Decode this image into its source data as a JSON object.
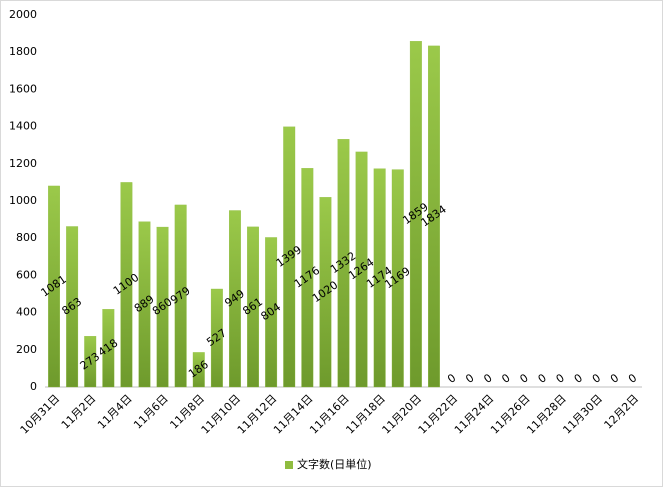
{
  "chart_data": {
    "type": "bar",
    "categories": [
      "10月31日",
      null,
      "11月2日",
      null,
      "11月4日",
      null,
      "11月6日",
      null,
      "11月8日",
      null,
      "11月10日",
      null,
      "11月12日",
      null,
      "11月14日",
      null,
      "11月16日",
      null,
      "11月18日",
      null,
      "11月20日",
      null,
      "11月22日",
      null,
      "11月24日",
      null,
      "11月26日",
      null,
      "11月28日",
      null,
      "11月30日",
      null,
      "12月2日"
    ],
    "series": [
      {
        "name": "文字数(日単位)",
        "color": "#8fbc3f",
        "values": [
          1081,
          863,
          273,
          418,
          1100,
          889,
          860,
          979,
          186,
          527,
          949,
          861,
          804,
          1399,
          1176,
          1020,
          1332,
          1264,
          1174,
          1169,
          1859,
          1834,
          0,
          0,
          0,
          0,
          0,
          0,
          0,
          0,
          0,
          0,
          0
        ]
      }
    ],
    "ylim": [
      0,
      2000
    ],
    "yticks": [
      0,
      200,
      400,
      600,
      800,
      1000,
      1200,
      1400,
      1600,
      1800,
      2000
    ],
    "grid": false,
    "legend": "bottom"
  }
}
